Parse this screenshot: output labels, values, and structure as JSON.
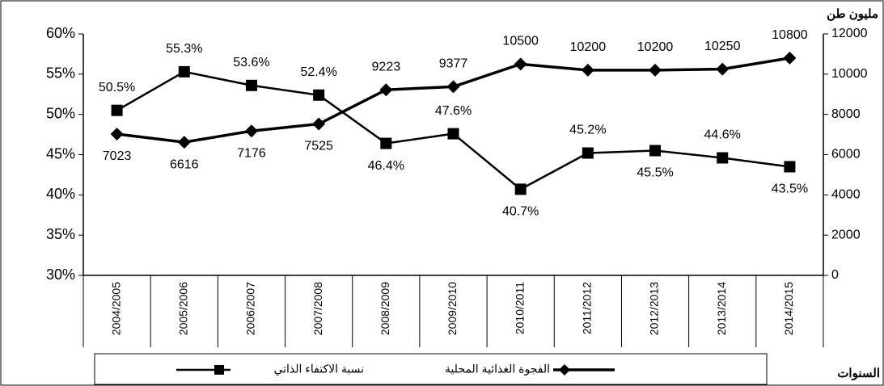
{
  "chart_data": {
    "type": "line",
    "y2_label": "مليون طن",
    "x_label": "السنوات",
    "categories": [
      "2004/2005",
      "2005/2006",
      "2006/2007",
      "2007/2008",
      "2008/2009",
      "2009/2010",
      "2010/2011",
      "2011/2012",
      "2012/2013",
      "2013/2014",
      "2014/2015"
    ],
    "ylim": [
      30,
      60
    ],
    "yticks": [
      {
        "value": 30,
        "label": "30%"
      },
      {
        "value": 35,
        "label": "35%"
      },
      {
        "value": 40,
        "label": "40%"
      },
      {
        "value": 45,
        "label": "45%"
      },
      {
        "value": 50,
        "label": "50%"
      },
      {
        "value": 55,
        "label": "55%"
      },
      {
        "value": 60,
        "label": "60%"
      }
    ],
    "y2lim": [
      0,
      12000
    ],
    "y2ticks": [
      0,
      2000,
      4000,
      6000,
      8000,
      10000,
      12000
    ],
    "series": [
      {
        "name": "نسبة الاكتفاء الذاتي",
        "color": "#000000",
        "marker": "square",
        "axis": "y",
        "values": [
          50.5,
          55.3,
          53.6,
          52.4,
          46.4,
          47.6,
          40.7,
          45.2,
          45.5,
          44.6,
          43.5
        ],
        "value_labels": [
          "50.5%",
          "55.3%",
          "53.6%",
          "52.4%",
          "46.4%",
          "47.6%",
          "40.7%",
          "45.2%",
          "45.5%",
          "44.6%",
          "43.5%"
        ]
      },
      {
        "name": "الفجوة الغذائية المحلية",
        "color": "#000000",
        "marker": "diamond",
        "axis": "y2",
        "values": [
          7023,
          6616,
          7176,
          7525,
          9223,
          9377,
          10500,
          10200,
          10200,
          10250,
          10800
        ]
      }
    ]
  }
}
